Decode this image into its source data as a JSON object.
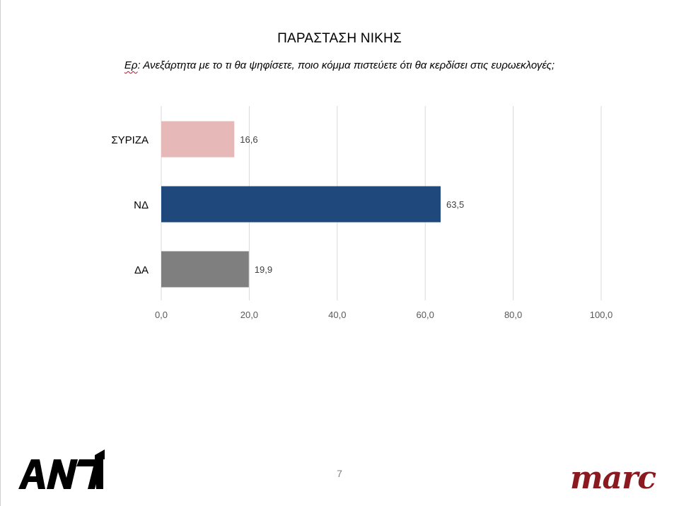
{
  "title": "ΠΑΡΑΣΤΑΣΗ ΝΙΚΗΣ",
  "subtitle_prefix": "Ερ",
  "subtitle_text": ": Ανεξάρτητα με το τι θα ψηφίσετε, ποιο κόμμα πιστεύετε ότι θα κερδίσει στις ευρωεκλογές;",
  "page_number": "7",
  "logos": {
    "left": "ANT1",
    "right": "marc"
  },
  "chart_data": {
    "type": "bar",
    "orientation": "horizontal",
    "categories": [
      "ΣΥΡΙΖΑ",
      "ΝΔ",
      "ΔΑ"
    ],
    "values": [
      16.6,
      63.5,
      19.9
    ],
    "value_labels": [
      "16,6",
      "63,5",
      "19,9"
    ],
    "colors": [
      "#e6b8b7",
      "#1f497d",
      "#7f7f7f"
    ],
    "xlim": [
      0,
      100
    ],
    "xticks": [
      0,
      20,
      40,
      60,
      80,
      100
    ],
    "xtick_labels": [
      "0,0",
      "20,0",
      "40,0",
      "60,0",
      "80,0",
      "100,0"
    ],
    "grid": true,
    "legend": "none"
  }
}
